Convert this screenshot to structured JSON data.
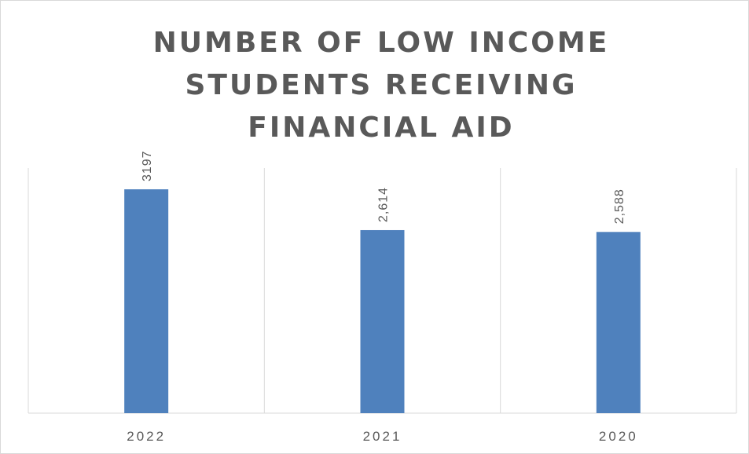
{
  "chart_data": {
    "type": "bar",
    "title": "NUMBER OF LOW INCOME STUDENTS RECEIVING FINANCIAL AID",
    "categories": [
      "2022",
      "2021",
      "2020"
    ],
    "values": [
      3197,
      2614,
      2588
    ],
    "data_labels": [
      "3197",
      "2,614",
      "2,588"
    ],
    "xlabel": "",
    "ylabel": "",
    "ylim": [
      0,
      3500
    ],
    "grid": "vertical category separators",
    "legend": "none",
    "colors": {
      "bar": "#4f81bd",
      "grid": "#d9d9d9",
      "text": "#595959"
    }
  }
}
